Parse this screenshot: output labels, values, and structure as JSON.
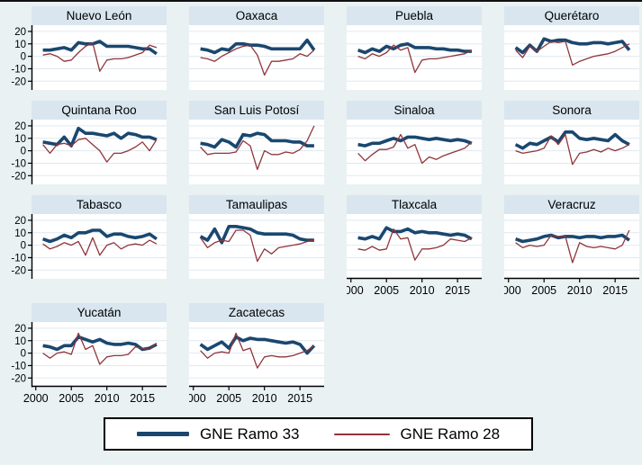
{
  "colors": {
    "ramo33_navy": "#1a476f",
    "ramo28_maroon": "#90353b",
    "background": "#e9f1f2",
    "title_strip": "#d9e6ef",
    "plot_background": "#ffffff",
    "gridline": "#dfe9f0",
    "axis": "#000000"
  },
  "legend": {
    "items": [
      {
        "label": "GNE Ramo 33",
        "series": "r33",
        "style": "thick-navy-line"
      },
      {
        "label": "GNE Ramo 28",
        "series": "r28",
        "style": "thin-maroon-line"
      }
    ]
  },
  "chart_data": {
    "type": "line",
    "layout": "small-multiples, 4 columns; y-axis labels on left column only; x-axis labels on bottom-most panel of each column",
    "series_names": [
      "GNE Ramo 33",
      "GNE Ramo 28"
    ],
    "x": [
      2001,
      2002,
      2003,
      2004,
      2005,
      2006,
      2007,
      2008,
      2009,
      2010,
      2011,
      2012,
      2013,
      2014,
      2015,
      2016,
      2017
    ],
    "x_ticks": [
      2000,
      2005,
      2010,
      2015
    ],
    "y_ticks": [
      20,
      10,
      0,
      -10,
      -20
    ],
    "ylim": [
      -27,
      25
    ],
    "xlim": [
      1999.4,
      2018.4
    ],
    "grid": true,
    "panels": [
      {
        "title": "Nuevo León",
        "r33": [
          5,
          5,
          6,
          7,
          5,
          11,
          10,
          10,
          12,
          8,
          8,
          8,
          8,
          7,
          6,
          6,
          2
        ],
        "r28": [
          1,
          2,
          0,
          -4,
          -3,
          3,
          8,
          11,
          -12,
          -3,
          -2,
          -2,
          -1,
          1,
          3,
          9,
          7
        ]
      },
      {
        "title": "Oaxaca",
        "r33": [
          6,
          5,
          3,
          6,
          5,
          10,
          10,
          9,
          9,
          8,
          6,
          6,
          6,
          6,
          6,
          13,
          5
        ],
        "r28": [
          -1,
          -2,
          -4,
          0,
          3,
          6,
          8,
          9,
          1,
          -15,
          -4,
          -4,
          -3,
          -2,
          2,
          0,
          5
        ]
      },
      {
        "title": "Puebla",
        "r33": [
          5,
          3,
          6,
          4,
          8,
          6,
          9,
          10,
          7,
          7,
          7,
          6,
          6,
          5,
          5,
          4,
          4
        ],
        "r28": [
          0,
          -2,
          2,
          0,
          3,
          9,
          5,
          7,
          -13,
          -3,
          -2,
          -2,
          -1,
          0,
          1,
          2,
          5
        ]
      },
      {
        "title": "Querétaro",
        "r33": [
          7,
          3,
          9,
          4,
          14,
          12,
          13,
          13,
          11,
          10,
          10,
          11,
          11,
          10,
          11,
          12,
          5
        ],
        "r28": [
          5,
          -1,
          8,
          4,
          8,
          12,
          11,
          12,
          -7,
          -4,
          -2,
          0,
          1,
          2,
          4,
          7,
          10
        ]
      },
      {
        "title": "Quintana Roo",
        "r33": [
          7,
          6,
          5,
          11,
          4,
          18,
          14,
          14,
          13,
          12,
          14,
          10,
          14,
          13,
          11,
          11,
          9
        ],
        "r28": [
          5,
          -2,
          5,
          6,
          4,
          9,
          10,
          5,
          0,
          -9,
          -2,
          -2,
          0,
          3,
          7,
          0,
          9
        ]
      },
      {
        "title": "San Luis Potosí",
        "r33": [
          6,
          5,
          3,
          9,
          7,
          3,
          13,
          12,
          14,
          13,
          8,
          8,
          8,
          7,
          7,
          4,
          4
        ],
        "r28": [
          3,
          -3,
          -2,
          -2,
          -2,
          -1,
          8,
          4,
          -15,
          0,
          -3,
          -3,
          -1,
          -2,
          1,
          8,
          20
        ]
      },
      {
        "title": "Sinaloa",
        "r33": [
          5,
          4,
          6,
          6,
          8,
          10,
          8,
          11,
          11,
          10,
          9,
          10,
          9,
          8,
          9,
          8,
          6
        ],
        "r28": [
          -2,
          -8,
          -3,
          1,
          1,
          3,
          13,
          2,
          5,
          -10,
          -5,
          -7,
          -4,
          -2,
          0,
          2,
          7
        ]
      },
      {
        "title": "Sonora",
        "r33": [
          5,
          2,
          6,
          5,
          8,
          11,
          7,
          15,
          15,
          10,
          9,
          10,
          9,
          8,
          13,
          8,
          5
        ],
        "r28": [
          0,
          -2,
          -1,
          0,
          2,
          12,
          5,
          13,
          -11,
          -2,
          -1,
          1,
          -1,
          2,
          0,
          2,
          5
        ]
      },
      {
        "title": "Tabasco",
        "r33": [
          5,
          3,
          5,
          8,
          6,
          10,
          10,
          12,
          12,
          7,
          9,
          9,
          7,
          6,
          7,
          9,
          5
        ],
        "r28": [
          1,
          -3,
          -1,
          2,
          0,
          3,
          -8,
          6,
          -8,
          0,
          2,
          -3,
          0,
          1,
          0,
          4,
          1
        ]
      },
      {
        "title": "Tamaulipas",
        "r33": [
          7,
          4,
          13,
          2,
          15,
          15,
          14,
          13,
          10,
          9,
          9,
          9,
          9,
          8,
          5,
          4,
          4
        ],
        "r28": [
          6,
          -2,
          2,
          4,
          3,
          12,
          12,
          8,
          -13,
          -3,
          -7,
          -2,
          -1,
          0,
          1,
          3,
          4
        ]
      },
      {
        "title": "Tlaxcala",
        "r33": [
          6,
          5,
          7,
          5,
          14,
          11,
          11,
          13,
          10,
          11,
          10,
          10,
          9,
          8,
          9,
          8,
          5
        ],
        "r28": [
          -3,
          -4,
          -1,
          -4,
          -3,
          13,
          5,
          6,
          -12,
          -3,
          -3,
          -2,
          0,
          5,
          4,
          3,
          6
        ]
      },
      {
        "title": "Veracruz",
        "r33": [
          5,
          3,
          4,
          5,
          7,
          8,
          6,
          7,
          7,
          6,
          7,
          7,
          6,
          7,
          7,
          8,
          4
        ],
        "r28": [
          2,
          -2,
          0,
          -1,
          0,
          8,
          7,
          7,
          -14,
          2,
          -1,
          -2,
          -1,
          -2,
          -3,
          0,
          12
        ]
      },
      {
        "title": "Yucatán",
        "r33": [
          6,
          5,
          3,
          6,
          6,
          13,
          11,
          9,
          11,
          8,
          7,
          7,
          8,
          7,
          3,
          4,
          7
        ],
        "r28": [
          0,
          -4,
          0,
          1,
          -1,
          16,
          3,
          6,
          -9,
          -3,
          -2,
          -2,
          -1,
          5,
          4,
          3,
          8
        ]
      },
      {
        "title": "Zacatecas",
        "r33": [
          7,
          3,
          6,
          9,
          4,
          13,
          10,
          12,
          11,
          11,
          10,
          9,
          8,
          9,
          7,
          0,
          6
        ],
        "r28": [
          2,
          -4,
          0,
          1,
          0,
          16,
          2,
          4,
          -12,
          -3,
          -2,
          -3,
          -3,
          -2,
          0,
          2,
          6
        ]
      }
    ]
  }
}
